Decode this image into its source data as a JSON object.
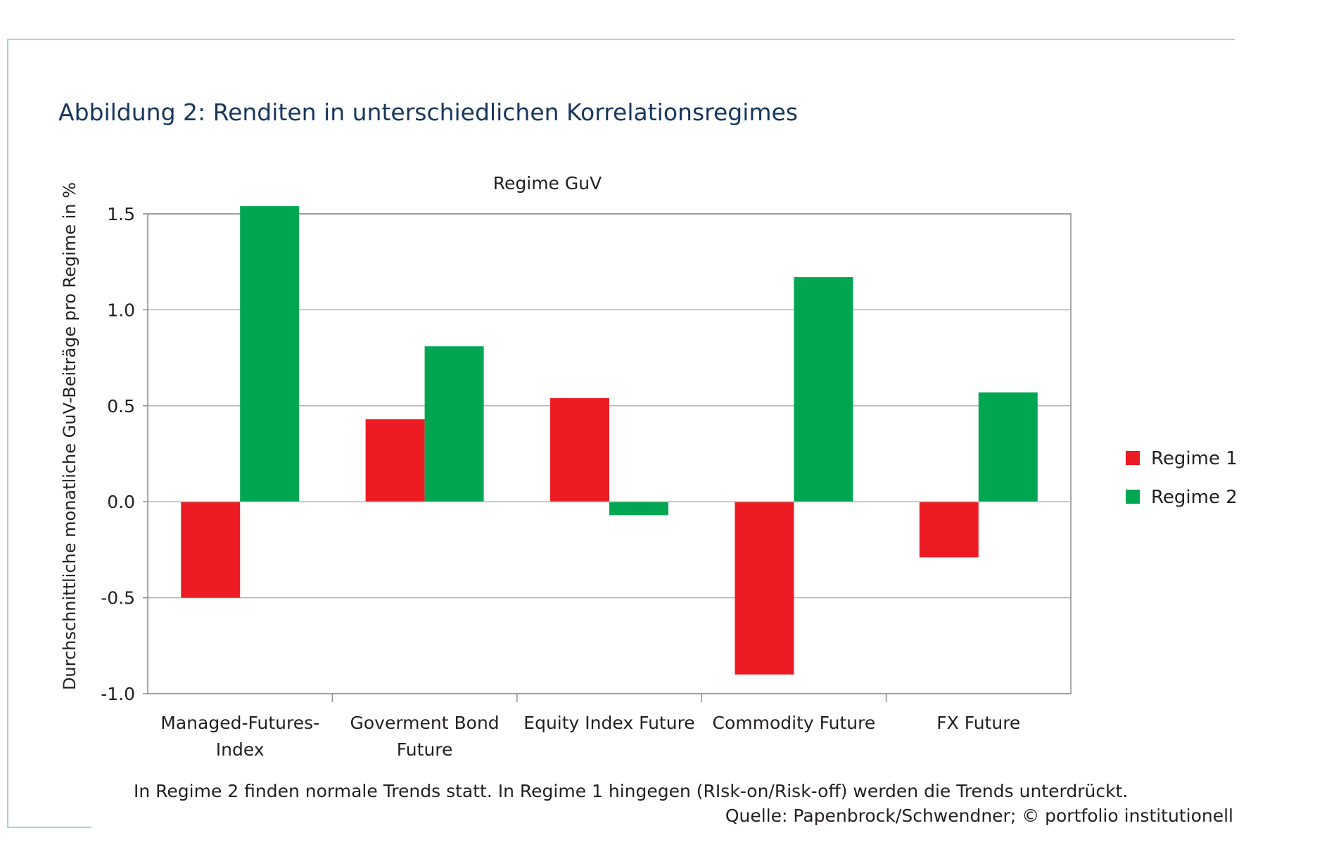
{
  "figure": {
    "title": "Abbildung 2: Renditen in unterschiedlichen Korrelationsregimes",
    "caption": "In Regime 2 finden normale Trends statt. In Regime 1 hingegen (RIsk-on/Risk-off) werden die Trends unterdrückt.",
    "source": "Quelle: Papenbrock/Schwendner; © portfolio institutionell"
  },
  "chart_data": {
    "type": "bar",
    "title": "Regime GuV",
    "xlabel": "",
    "ylabel": "Durchschnittliche monatliche GuV-Beiträge pro Regime in %",
    "categories": [
      [
        "Managed-Futures-",
        "Index"
      ],
      [
        "Goverment Bond",
        "Future"
      ],
      [
        "Equity Index Future"
      ],
      [
        "Commodity Future"
      ],
      [
        "FX Future"
      ]
    ],
    "series": [
      {
        "name": "Regime 1",
        "color": "#ed1c24",
        "values": [
          -0.5,
          0.43,
          0.54,
          -0.9,
          -0.29
        ]
      },
      {
        "name": "Regime 2",
        "color": "#00a651",
        "values": [
          1.54,
          0.81,
          -0.07,
          1.17,
          0.57
        ]
      }
    ],
    "ylim": [
      -1.0,
      1.5
    ],
    "yticks": [
      -1.0,
      -0.5,
      0.0,
      0.5,
      1.0,
      1.5
    ],
    "ytick_labels": [
      "-1.0",
      "-0.5",
      "0.0",
      "0.5",
      "1.0",
      "1.5"
    ],
    "grid": true,
    "gridline_color": "#b3b3b3",
    "legend_position": "right"
  }
}
